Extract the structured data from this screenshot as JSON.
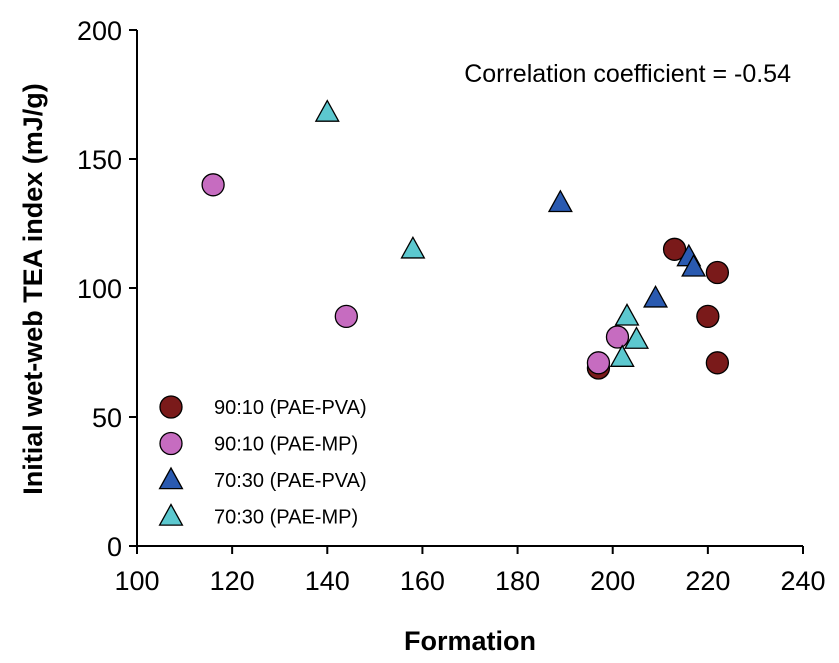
{
  "chart_data": {
    "type": "scatter",
    "xlabel": "Formation",
    "ylabel": "Initial wet-web TEA index (mJ/g)",
    "xlim": [
      100,
      240
    ],
    "ylim": [
      0,
      200
    ],
    "xticks": [
      100,
      120,
      140,
      160,
      180,
      200,
      220,
      240
    ],
    "yticks": [
      0,
      50,
      100,
      150,
      200
    ],
    "annotation": "Correlation coefficient = -0.54",
    "legend_position": "bottom-left",
    "series": [
      {
        "name": "90:10 (PAE-PVA)",
        "marker": "circle",
        "color": "#7a1a1a",
        "points": [
          [
            197,
            69
          ],
          [
            213,
            115
          ],
          [
            220,
            89
          ],
          [
            222,
            106
          ],
          [
            222,
            71
          ]
        ]
      },
      {
        "name": "90:10 (PAE-MP)",
        "marker": "circle",
        "color": "#c66cc0",
        "points": [
          [
            116,
            140
          ],
          [
            144,
            89
          ],
          [
            197,
            71
          ],
          [
            201,
            81
          ]
        ]
      },
      {
        "name": "70:30 (PAE-PVA)",
        "marker": "triangle",
        "color": "#2a5ab0",
        "points": [
          [
            189,
            133
          ],
          [
            209,
            96
          ],
          [
            216,
            112
          ],
          [
            217,
            108
          ]
        ]
      },
      {
        "name": "70:30 (PAE-MP)",
        "marker": "triangle",
        "color": "#5cc8cf",
        "points": [
          [
            140,
            168
          ],
          [
            158,
            115
          ],
          [
            203,
            89
          ],
          [
            205,
            80
          ],
          [
            202,
            73
          ]
        ]
      }
    ]
  }
}
